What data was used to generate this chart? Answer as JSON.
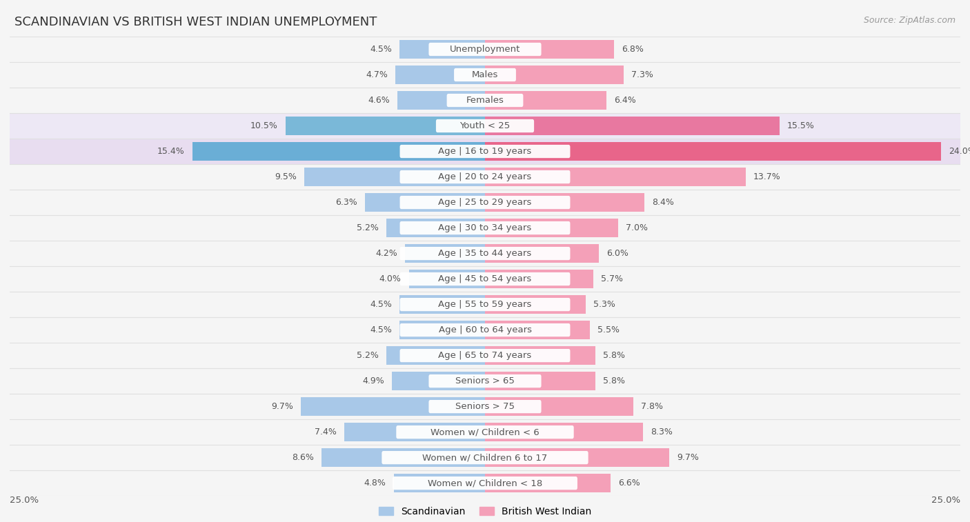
{
  "title": "SCANDINAVIAN VS BRITISH WEST INDIAN UNEMPLOYMENT",
  "source": "Source: ZipAtlas.com",
  "categories": [
    "Unemployment",
    "Males",
    "Females",
    "Youth < 25",
    "Age | 16 to 19 years",
    "Age | 20 to 24 years",
    "Age | 25 to 29 years",
    "Age | 30 to 34 years",
    "Age | 35 to 44 years",
    "Age | 45 to 54 years",
    "Age | 55 to 59 years",
    "Age | 60 to 64 years",
    "Age | 65 to 74 years",
    "Seniors > 65",
    "Seniors > 75",
    "Women w/ Children < 6",
    "Women w/ Children 6 to 17",
    "Women w/ Children < 18"
  ],
  "scandinavian": [
    4.5,
    4.7,
    4.6,
    10.5,
    15.4,
    9.5,
    6.3,
    5.2,
    4.2,
    4.0,
    4.5,
    4.5,
    5.2,
    4.9,
    9.7,
    7.4,
    8.6,
    4.8
  ],
  "british_west_indian": [
    6.8,
    7.3,
    6.4,
    15.5,
    24.0,
    13.7,
    8.4,
    7.0,
    6.0,
    5.7,
    5.3,
    5.5,
    5.8,
    5.8,
    7.8,
    8.3,
    9.7,
    6.6
  ],
  "scandinavian_color": "#a8c8e8",
  "british_west_indian_color": "#f4a0b8",
  "highlight_scand_color": "#6aaed6",
  "highlight_bwi_color": "#e8658a",
  "row_bg_normal": "#f5f5f5",
  "row_bg_highlight": "#ede8f5",
  "row_bg_highlight2": "#e8ddf0",
  "separator_color": "#e0e0e0",
  "label_bg_color": "#ffffff",
  "text_color": "#555555",
  "title_color": "#333333",
  "source_color": "#999999",
  "max_val": 25.0,
  "bar_height": 0.72,
  "font_size_labels": 9.5,
  "font_size_values": 9.0,
  "font_size_title": 13,
  "font_size_source": 9,
  "font_size_legend": 10
}
